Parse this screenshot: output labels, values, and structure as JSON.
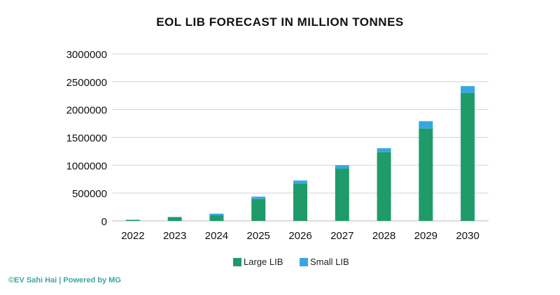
{
  "chart_data": {
    "type": "bar",
    "stacked": true,
    "title": "EOL LIB FORECAST IN MILLION TONNES",
    "xlabel": "",
    "ylabel": "",
    "categories": [
      "2022",
      "2023",
      "2024",
      "2025",
      "2026",
      "2027",
      "2028",
      "2029",
      "2030"
    ],
    "series": [
      {
        "name": "Large LIB",
        "color": "#1f9b6a",
        "values": [
          20000,
          70000,
          100000,
          390000,
          670000,
          940000,
          1235000,
          1660000,
          2300000
        ]
      },
      {
        "name": "Small LIB",
        "color": "#35a8e0",
        "values": [
          0,
          0,
          30000,
          45000,
          55000,
          60000,
          70000,
          130000,
          120000
        ]
      }
    ],
    "ylim": [
      0,
      3000000
    ],
    "yticks": [
      "0",
      "500000",
      "1000000",
      "1500000",
      "2000000",
      "2500000",
      "3000000"
    ],
    "grid": true,
    "legend": "bottom"
  },
  "footer": "©EV Sahi Hai | Powered by MG"
}
